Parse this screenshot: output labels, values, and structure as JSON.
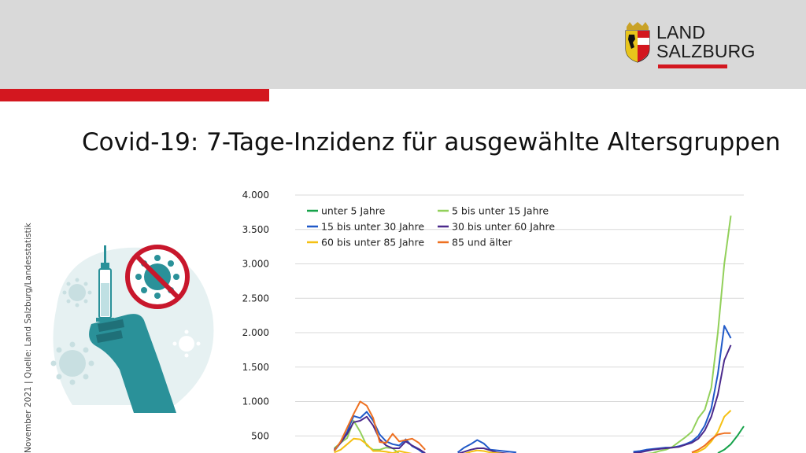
{
  "header": {
    "logo": {
      "line1": "LAND",
      "line2": "SALZBURG"
    },
    "title": "Covid-19: 7-Tage-Inzidenz für ausgewählte Altersgruppen"
  },
  "source_note": "November 2021 | Quelle: Land Salzburg/Landesstatistik",
  "colors": {
    "brand_red": "#d3171f",
    "header_gray": "#d9d9d9",
    "illustration_teal": "#2a9199"
  },
  "icons": [
    "coat-of-arms-icon",
    "vaccine-syringe-icon",
    "no-virus-icon",
    "virus-icon"
  ],
  "chart_data": {
    "type": "line",
    "title": "",
    "xlabel": "",
    "ylabel": "",
    "ylim": [
      0,
      4000
    ],
    "yticks": [
      "4.000",
      "3.500",
      "3.000",
      "2.500",
      "2.000",
      "1.500",
      "1.000",
      "500"
    ],
    "ytick_values": [
      4000,
      3500,
      3000,
      2500,
      2000,
      1500,
      1000,
      500
    ],
    "grid": true,
    "legend_position": "top-left",
    "x": [
      0,
      1,
      2,
      3,
      4,
      5,
      6,
      7,
      8,
      9,
      10,
      11,
      12,
      13,
      14,
      15,
      16,
      17,
      18,
      19,
      20,
      21,
      22,
      23,
      24,
      25,
      26,
      27,
      28,
      29,
      30,
      31,
      32,
      33,
      34,
      35,
      36,
      37,
      38,
      39,
      40,
      41,
      42,
      43,
      44,
      45,
      46,
      47,
      48,
      49,
      50,
      51,
      52,
      53,
      54,
      55,
      56,
      57,
      58,
      59,
      60,
      61,
      62,
      63,
      64,
      65,
      66,
      67,
      68,
      69
    ],
    "series": [
      {
        "name": "unter 5 Jahre",
        "color": "#16a24a",
        "values": [
          null,
          null,
          null,
          null,
          null,
          null,
          null,
          null,
          null,
          null,
          null,
          null,
          null,
          null,
          null,
          null,
          null,
          null,
          null,
          null,
          null,
          null,
          null,
          null,
          null,
          null,
          null,
          null,
          null,
          null,
          null,
          null,
          null,
          null,
          null,
          null,
          null,
          null,
          null,
          null,
          null,
          null,
          null,
          null,
          null,
          null,
          null,
          null,
          null,
          null,
          null,
          null,
          null,
          null,
          null,
          null,
          null,
          null,
          null,
          null,
          null,
          null,
          null,
          null,
          null,
          250,
          300,
          380,
          500,
          640
        ]
      },
      {
        "name": "5 bis unter 15 Jahre",
        "color": "#92d05a",
        "values": [
          null,
          null,
          null,
          null,
          null,
          null,
          320,
          400,
          470,
          720,
          560,
          360,
          300,
          300,
          330,
          320,
          240,
          200,
          null,
          null,
          null,
          null,
          null,
          null,
          null,
          null,
          null,
          null,
          null,
          null,
          null,
          null,
          null,
          null,
          null,
          null,
          null,
          null,
          null,
          null,
          null,
          null,
          null,
          null,
          null,
          null,
          null,
          null,
          null,
          null,
          null,
          null,
          230,
          230,
          240,
          250,
          280,
          300,
          340,
          410,
          480,
          560,
          760,
          880,
          1200,
          2000,
          3000,
          3700,
          null,
          null
        ]
      },
      {
        "name": "15 bis unter 30 Jahre",
        "color": "#2059c8",
        "values": [
          null,
          null,
          null,
          null,
          null,
          null,
          280,
          400,
          560,
          790,
          760,
          850,
          720,
          520,
          420,
          380,
          360,
          450,
          350,
          300,
          230,
          null,
          null,
          null,
          null,
          260,
          330,
          380,
          440,
          390,
          300,
          290,
          280,
          270,
          260,
          null,
          null,
          null,
          null,
          null,
          null,
          null,
          null,
          null,
          null,
          null,
          null,
          null,
          null,
          null,
          null,
          null,
          270,
          280,
          300,
          310,
          320,
          330,
          330,
          350,
          380,
          420,
          500,
          650,
          900,
          1400,
          2100,
          1920,
          null,
          null
        ]
      },
      {
        "name": "30 bis unter 60 Jahre",
        "color": "#4b2a8c",
        "values": [
          null,
          null,
          null,
          null,
          null,
          null,
          300,
          400,
          530,
          700,
          720,
          780,
          650,
          450,
          360,
          320,
          320,
          420,
          360,
          310,
          250,
          null,
          null,
          null,
          null,
          240,
          270,
          300,
          320,
          320,
          290,
          260,
          250,
          240,
          240,
          null,
          null,
          null,
          null,
          null,
          null,
          null,
          null,
          null,
          null,
          null,
          null,
          null,
          null,
          null,
          null,
          null,
          250,
          260,
          280,
          300,
          310,
          320,
          330,
          340,
          370,
          400,
          460,
          580,
          780,
          1100,
          1600,
          1820,
          null,
          null
        ]
      },
      {
        "name": "60 bis unter 85 Jahre",
        "color": "#f5c013",
        "values": [
          null,
          null,
          null,
          null,
          null,
          null,
          260,
          300,
          380,
          460,
          450,
          380,
          280,
          280,
          270,
          250,
          280,
          260,
          240,
          230,
          220,
          null,
          null,
          null,
          null,
          220,
          240,
          270,
          290,
          280,
          260,
          250,
          240,
          230,
          230,
          null,
          null,
          null,
          null,
          null,
          null,
          null,
          null,
          null,
          null,
          null,
          null,
          null,
          null,
          null,
          null,
          null,
          null,
          null,
          null,
          null,
          null,
          null,
          null,
          null,
          null,
          240,
          270,
          320,
          420,
          560,
          780,
          870,
          null,
          null
        ]
      },
      {
        "name": "85 und älter",
        "color": "#ee7020",
        "values": [
          null,
          null,
          null,
          null,
          null,
          null,
          280,
          420,
          620,
          820,
          1000,
          940,
          760,
          410,
          400,
          530,
          420,
          440,
          460,
          400,
          300,
          null,
          null,
          null,
          null,
          null,
          null,
          null,
          null,
          null,
          null,
          null,
          null,
          null,
          null,
          null,
          null,
          null,
          null,
          null,
          null,
          null,
          null,
          null,
          null,
          null,
          null,
          null,
          null,
          null,
          null,
          null,
          null,
          null,
          null,
          null,
          null,
          null,
          null,
          null,
          null,
          260,
          300,
          360,
          450,
          520,
          540,
          540,
          null,
          null
        ]
      }
    ]
  }
}
